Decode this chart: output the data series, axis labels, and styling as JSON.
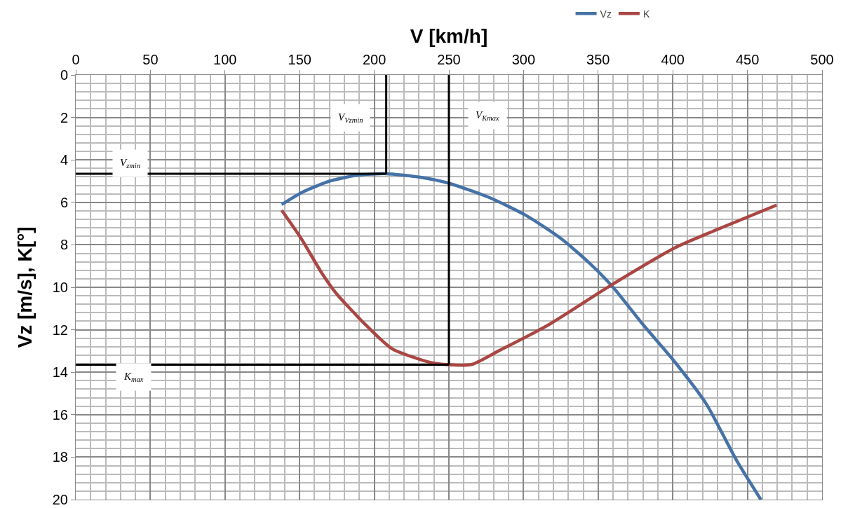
{
  "chart_data": {
    "type": "line",
    "xlabel": "V [km/h]",
    "ylabel": "Vz [m/s], K[°]",
    "xlim": [
      0,
      500
    ],
    "xticks": [
      0,
      50,
      100,
      150,
      200,
      250,
      300,
      350,
      400,
      450,
      500
    ],
    "ylim": [
      20,
      0
    ],
    "yticks": [
      0,
      2,
      4,
      6,
      8,
      10,
      12,
      14,
      16,
      18,
      20
    ],
    "grid": true,
    "legend": "top",
    "line_style": "solid",
    "marker": "none",
    "series": [
      {
        "name": "Vz",
        "color": "#4572a7",
        "x": [
          138,
          151,
          170,
          189,
          208,
          231,
          250,
          278,
          302,
          325,
          344,
          360,
          380,
          400,
          422.5,
          442.7,
          459
        ],
        "values": [
          6.1,
          5.55,
          5.0,
          4.72,
          4.65,
          4.82,
          5.1,
          5.8,
          6.63,
          7.7,
          8.85,
          10.0,
          11.75,
          13.4,
          15.5,
          18.15,
          20
        ]
      },
      {
        "name": "K",
        "color": "#aa4643",
        "x": [
          138,
          151,
          165,
          175,
          194,
          212,
          237,
          250,
          265.5,
          284,
          316,
          358,
          402,
          427,
          469.5
        ],
        "values": [
          6.37,
          7.7,
          9.35,
          10.33,
          11.75,
          12.9,
          13.53,
          13.65,
          13.63,
          12.97,
          11.8,
          9.93,
          8.12,
          7.36,
          6.13
        ]
      },
      {
        "color": "#000000",
        "x": [
          0,
          208
        ],
        "values": [
          4.65,
          4.65
        ]
      },
      {
        "color": "#000000",
        "x": [
          208,
          208
        ],
        "values": [
          4.65,
          0
        ]
      },
      {
        "color": "#000000",
        "x": [
          0,
          250
        ],
        "values": [
          13.65,
          13.65
        ]
      },
      {
        "color": "#000000",
        "x": [
          250,
          250
        ],
        "values": [
          13.65,
          0
        ]
      }
    ],
    "annotations": [
      "V$_{zmin}$",
      "V$_{Vzmin}$",
      "V$_{Kmax}$",
      "K$_{max}$"
    ]
  }
}
